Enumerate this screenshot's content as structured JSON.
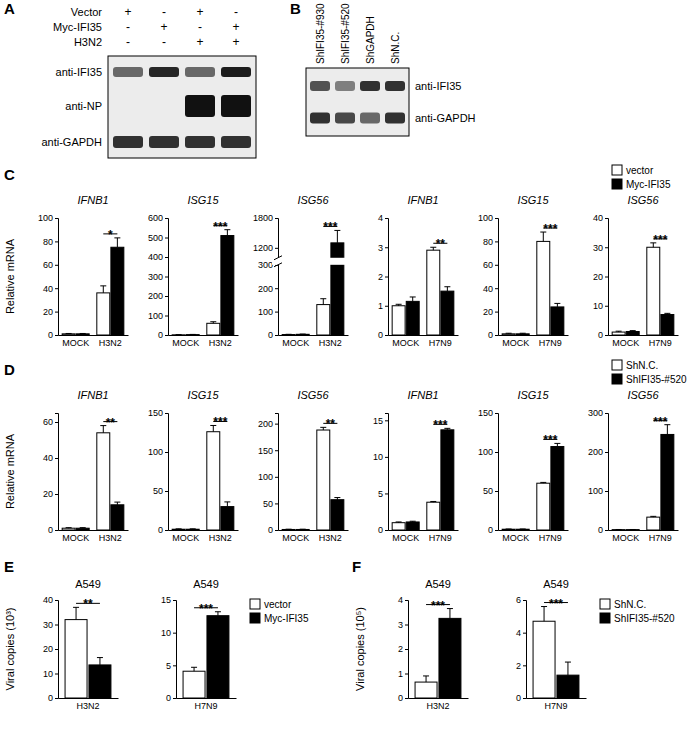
{
  "blots": [
    {
      "panel": "A",
      "conditions": [
        {
          "label": "Vector",
          "signs": [
            "+",
            "-",
            "+",
            "-"
          ]
        },
        {
          "label": "Myc-IFI35",
          "signs": [
            "-",
            "+",
            "-",
            "+"
          ]
        },
        {
          "label": "H3N2",
          "signs": [
            "-",
            "-",
            "+",
            "+"
          ]
        }
      ],
      "rows": [
        {
          "label": "anti-IFI35",
          "bands": [
            0.6,
            0.9,
            0.6,
            0.95
          ]
        },
        {
          "label": "anti-NP",
          "bands": [
            0,
            0,
            1,
            1
          ]
        },
        {
          "label": "anti-GAPDH",
          "bands": [
            0.85,
            0.85,
            0.85,
            0.85
          ]
        }
      ]
    },
    {
      "panel": "B",
      "lanes": [
        "ShIFI35-#930",
        "ShIFI35-#520",
        "ShGAPDH",
        "ShN.C."
      ],
      "rows": [
        {
          "label": "anti-IFI35",
          "bands": [
            0.7,
            0.5,
            0.85,
            0.85
          ]
        },
        {
          "label": "anti-GAPDH",
          "bands": [
            0.85,
            0.75,
            0.6,
            0.85
          ]
        }
      ]
    }
  ],
  "chart_data": [
    {
      "type": "bar",
      "panel": "C",
      "title": "IFNB1",
      "ylabel": "Relative mRNA",
      "categories": [
        "MOCK",
        "H3N2"
      ],
      "series": [
        {
          "name": "vector",
          "color": "#ffffff",
          "values": [
            1,
            36
          ],
          "errors": [
            0.3,
            6
          ]
        },
        {
          "name": "Myc-IFI35",
          "color": "#000000",
          "values": [
            1,
            75
          ],
          "errors": [
            0.3,
            8
          ]
        }
      ],
      "ylim": [
        0,
        100
      ],
      "yticks": [
        0,
        20,
        40,
        60,
        80,
        100
      ],
      "annotations": [
        {
          "text": "*",
          "category": "H3N2"
        }
      ]
    },
    {
      "type": "bar",
      "title": "ISG15",
      "categories": [
        "MOCK",
        "H3N2"
      ],
      "series": [
        {
          "name": "vector",
          "color": "#ffffff",
          "values": [
            1,
            60
          ],
          "errors": [
            1,
            8
          ]
        },
        {
          "name": "Myc-IFI35",
          "color": "#000000",
          "values": [
            2,
            510
          ],
          "errors": [
            1,
            30
          ]
        }
      ],
      "ylim": [
        0,
        600
      ],
      "yticks": [
        0,
        100,
        200,
        300,
        400,
        500,
        600
      ],
      "annotations": [
        {
          "text": "***",
          "category": "H3N2"
        }
      ]
    },
    {
      "type": "bar",
      "title": "ISG56",
      "categories": [
        "MOCK",
        "H3N2"
      ],
      "series": [
        {
          "name": "vector",
          "color": "#ffffff",
          "values": [
            2,
            130
          ],
          "errors": [
            1,
            25
          ]
        },
        {
          "name": "Myc-IFI35",
          "color": "#000000",
          "values": [
            3,
            1300
          ],
          "errors": [
            1,
            250
          ]
        }
      ],
      "ylim": [
        0,
        1800
      ],
      "yticks": [
        0,
        100,
        200,
        300,
        1200,
        1800
      ],
      "axis_break": [
        300,
        1000
      ],
      "annotations": [
        {
          "text": "***",
          "category": "H3N2"
        }
      ]
    },
    {
      "type": "bar",
      "title": "IFNB1",
      "categories": [
        "MOCK",
        "H7N9"
      ],
      "series": [
        {
          "name": "vector",
          "color": "#ffffff",
          "values": [
            1,
            2.9
          ],
          "errors": [
            0.05,
            0.1
          ]
        },
        {
          "name": "Myc-IFI35",
          "color": "#000000",
          "values": [
            1.15,
            1.5
          ],
          "errors": [
            0.15,
            0.15
          ]
        }
      ],
      "ylim": [
        0,
        4
      ],
      "yticks": [
        0,
        1,
        2,
        3,
        4
      ],
      "annotations": [
        {
          "text": "**",
          "category": "H7N9"
        }
      ]
    },
    {
      "type": "bar",
      "title": "ISG15",
      "categories": [
        "MOCK",
        "H7N9"
      ],
      "series": [
        {
          "name": "vector",
          "color": "#ffffff",
          "values": [
            1,
            80
          ],
          "errors": [
            0.5,
            8
          ]
        },
        {
          "name": "Myc-IFI35",
          "color": "#000000",
          "values": [
            1,
            24
          ],
          "errors": [
            0.5,
            3
          ]
        }
      ],
      "ylim": [
        0,
        100
      ],
      "yticks": [
        0,
        20,
        40,
        60,
        80,
        100
      ],
      "annotations": [
        {
          "text": "***",
          "category": "H7N9"
        }
      ]
    },
    {
      "type": "bar",
      "title": "ISG56",
      "categories": [
        "MOCK",
        "H7N9"
      ],
      "series": [
        {
          "name": "vector",
          "color": "#ffffff",
          "values": [
            1,
            30
          ],
          "errors": [
            0.3,
            1.5
          ]
        },
        {
          "name": "Myc-IFI35",
          "color": "#000000",
          "values": [
            1.2,
            7
          ],
          "errors": [
            0.3,
            0.4
          ]
        }
      ],
      "ylim": [
        0,
        40
      ],
      "yticks": [
        0,
        10,
        20,
        30,
        40
      ],
      "annotations": [
        {
          "text": "***",
          "category": "H7N9"
        }
      ],
      "legend": "upper right"
    },
    {
      "type": "bar",
      "panel": "D",
      "title": "IFNB1",
      "ylabel": "Relative mRNA",
      "categories": [
        "MOCK",
        "H3N2"
      ],
      "series": [
        {
          "name": "ShN.C.",
          "color": "#ffffff",
          "values": [
            1,
            54
          ],
          "errors": [
            0.3,
            4
          ]
        },
        {
          "name": "ShIFI35-#520",
          "color": "#000000",
          "values": [
            1,
            14
          ],
          "errors": [
            0.3,
            1.5
          ]
        }
      ],
      "ylim": [
        0,
        65
      ],
      "yticks": [
        0,
        20,
        40,
        60
      ],
      "annotations": [
        {
          "text": "**",
          "category": "H3N2"
        }
      ]
    },
    {
      "type": "bar",
      "title": "ISG15",
      "categories": [
        "MOCK",
        "H3N2"
      ],
      "series": [
        {
          "name": "ShN.C.",
          "color": "#ffffff",
          "values": [
            1,
            126
          ],
          "errors": [
            0.5,
            8
          ]
        },
        {
          "name": "ShIFI35-#520",
          "color": "#000000",
          "values": [
            1,
            30
          ],
          "errors": [
            0.5,
            6
          ]
        }
      ],
      "ylim": [
        0,
        150
      ],
      "yticks": [
        0,
        50,
        100,
        150
      ],
      "annotations": [
        {
          "text": "***",
          "category": "H3N2"
        }
      ]
    },
    {
      "type": "bar",
      "title": "ISG56",
      "categories": [
        "MOCK",
        "H3N2"
      ],
      "series": [
        {
          "name": "ShN.C.",
          "color": "#ffffff",
          "values": [
            1,
            188
          ],
          "errors": [
            0.5,
            5
          ]
        },
        {
          "name": "ShIFI35-#520",
          "color": "#000000",
          "values": [
            1,
            57
          ],
          "errors": [
            0.5,
            4
          ]
        }
      ],
      "ylim": [
        0,
        220
      ],
      "yticks": [
        0,
        50,
        100,
        150,
        200
      ],
      "annotations": [
        {
          "text": "**",
          "category": "H3N2"
        }
      ]
    },
    {
      "type": "bar",
      "title": "IFNB1",
      "categories": [
        "MOCK",
        "H7N9"
      ],
      "series": [
        {
          "name": "ShN.C.",
          "color": "#ffffff",
          "values": [
            1,
            3.8
          ],
          "errors": [
            0.1,
            0.1
          ]
        },
        {
          "name": "ShIFI35-#520",
          "color": "#000000",
          "values": [
            1.1,
            13.7
          ],
          "errors": [
            0.1,
            0.2
          ]
        }
      ],
      "ylim": [
        0,
        16
      ],
      "yticks": [
        0,
        5,
        10,
        15
      ],
      "annotations": [
        {
          "text": "***",
          "category": "H7N9"
        }
      ]
    },
    {
      "type": "bar",
      "title": "ISG15",
      "categories": [
        "MOCK",
        "H7N9"
      ],
      "series": [
        {
          "name": "ShN.C.",
          "color": "#ffffff",
          "values": [
            1,
            60
          ],
          "errors": [
            0.3,
            1
          ]
        },
        {
          "name": "ShIFI35-#520",
          "color": "#000000",
          "values": [
            1,
            107
          ],
          "errors": [
            0.3,
            4
          ]
        }
      ],
      "ylim": [
        0,
        150
      ],
      "yticks": [
        0,
        50,
        100,
        150
      ],
      "annotations": [
        {
          "text": "***",
          "category": "H7N9"
        }
      ]
    },
    {
      "type": "bar",
      "title": "ISG56",
      "categories": [
        "MOCK",
        "H7N9"
      ],
      "series": [
        {
          "name": "ShN.C.",
          "color": "#ffffff",
          "values": [
            1,
            33
          ],
          "errors": [
            0.3,
            2
          ]
        },
        {
          "name": "ShIFI35-#520",
          "color": "#000000",
          "values": [
            1,
            245
          ],
          "errors": [
            0.3,
            25
          ]
        }
      ],
      "ylim": [
        0,
        300
      ],
      "yticks": [
        0,
        100,
        200,
        300
      ],
      "annotations": [
        {
          "text": "***",
          "category": "H7N9"
        }
      ],
      "legend": "upper right"
    },
    {
      "type": "bar",
      "panel": "E",
      "title": "A549",
      "ylabel": "Viral copies (10³)",
      "categories": [
        "H3N2"
      ],
      "series": [
        {
          "name": "vector",
          "color": "#ffffff",
          "values": [
            32
          ],
          "errors": [
            5
          ]
        },
        {
          "name": "Myc-IFI35",
          "color": "#000000",
          "values": [
            13.5
          ],
          "errors": [
            3
          ]
        }
      ],
      "ylim": [
        0,
        40
      ],
      "yticks": [
        0,
        10,
        20,
        30,
        40
      ],
      "annotations": [
        {
          "text": "**",
          "category": "H3N2"
        }
      ]
    },
    {
      "type": "bar",
      "title": "A549",
      "categories": [
        "H7N9"
      ],
      "series": [
        {
          "name": "vector",
          "color": "#ffffff",
          "values": [
            4.1
          ],
          "errors": [
            0.6
          ]
        },
        {
          "name": "Myc-IFI35",
          "color": "#000000",
          "values": [
            12.6
          ],
          "errors": [
            0.6
          ]
        }
      ],
      "ylim": [
        0,
        15
      ],
      "yticks": [
        0,
        5,
        10,
        15
      ],
      "annotations": [
        {
          "text": "***",
          "category": "H7N9"
        }
      ],
      "legend": "right"
    },
    {
      "type": "bar",
      "panel": "F",
      "title": "A549",
      "ylabel": "Viral copies (10⁵)",
      "categories": [
        "H3N2"
      ],
      "series": [
        {
          "name": "ShN.C.",
          "color": "#ffffff",
          "values": [
            0.65
          ],
          "errors": [
            0.25
          ]
        },
        {
          "name": "ShIFI35-#520",
          "color": "#000000",
          "values": [
            3.25
          ],
          "errors": [
            0.4
          ]
        }
      ],
      "ylim": [
        0,
        4
      ],
      "yticks": [
        0,
        1,
        2,
        3,
        4
      ],
      "annotations": [
        {
          "text": "***",
          "category": "H3N2"
        }
      ]
    },
    {
      "type": "bar",
      "title": "A549",
      "categories": [
        "H7N9"
      ],
      "series": [
        {
          "name": "ShN.C.",
          "color": "#ffffff",
          "values": [
            4.7
          ],
          "errors": [
            0.9
          ]
        },
        {
          "name": "ShIFI35-#520",
          "color": "#000000",
          "values": [
            1.4
          ],
          "errors": [
            0.8
          ]
        }
      ],
      "ylim": [
        0,
        6
      ],
      "yticks": [
        0,
        2,
        4,
        6
      ],
      "annotations": [
        {
          "text": "***",
          "category": "H7N9"
        }
      ],
      "legend": "right"
    }
  ]
}
